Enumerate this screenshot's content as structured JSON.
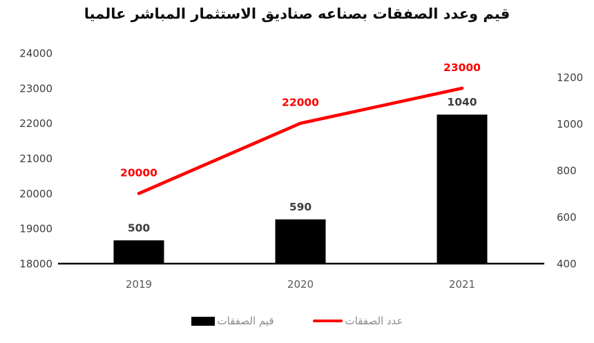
{
  "chart_data": {
    "type": "bar+line",
    "title": "قيم وعدد الصفقات بصناعه صناديق الاستثمار المباشر عالميا",
    "categories": [
      "2019",
      "2020",
      "2021"
    ],
    "series": [
      {
        "name": "قيم الصفقات",
        "type": "bar",
        "axis": "right",
        "color": "#000000",
        "values": [
          500,
          590,
          1040
        ],
        "labels": [
          "500",
          "590",
          "1040"
        ],
        "label_color": "#3d3d3d"
      },
      {
        "name": "عدد الصفقات",
        "type": "line",
        "axis": "left",
        "color": "#fe0000",
        "values": [
          20000,
          22000,
          23000
        ],
        "labels": [
          "20000",
          "22000",
          "23000"
        ],
        "label_color": "#fe0000"
      }
    ],
    "axes": {
      "left": {
        "min": 18000,
        "max": 24000,
        "ticks": [
          18000,
          19000,
          20000,
          21000,
          22000,
          23000,
          24000
        ]
      },
      "right": {
        "min": 400,
        "max": 1200,
        "ticks": [
          400,
          600,
          800,
          1000,
          1200
        ]
      }
    },
    "axis_line_color": "#000000",
    "grid": false,
    "legend_position": "bottom"
  }
}
